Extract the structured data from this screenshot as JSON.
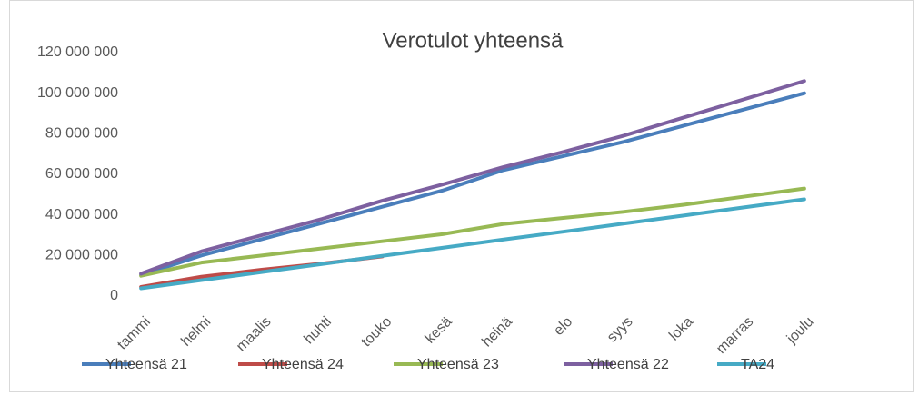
{
  "chart_data": {
    "type": "line",
    "title": "Verotulot yhteensä",
    "categories": [
      "tammi",
      "helmi",
      "maalis",
      "huhti",
      "touko",
      "kesä",
      "heinä",
      "elo",
      "syys",
      "loka",
      "marras",
      "joulu"
    ],
    "series": [
      {
        "name": "Yhteensä 21",
        "color": "#4a7ebb",
        "values": [
          10300000,
          20000000,
          28000000,
          36000000,
          44000000,
          52000000,
          62000000,
          69000000,
          76000000,
          84000000,
          92000000,
          100000000
        ]
      },
      {
        "name": "Yhteensä 24",
        "color": "#be4b48",
        "values": [
          4500000,
          9500000,
          13000000,
          16000000,
          19500000,
          null,
          null,
          null,
          null,
          null,
          null,
          null
        ]
      },
      {
        "name": "Yhteensä 23",
        "color": "#98b954",
        "values": [
          10000000,
          16500000,
          20000000,
          23500000,
          27000000,
          30500000,
          35500000,
          38500000,
          41500000,
          45000000,
          49000000,
          53000000
        ]
      },
      {
        "name": "Yhteensä 22",
        "color": "#7d60a0",
        "values": [
          11000000,
          22000000,
          30000000,
          38000000,
          47000000,
          55000000,
          63500000,
          71000000,
          79000000,
          88000000,
          97000000,
          106000000
        ]
      },
      {
        "name": "TA24",
        "color": "#46aac5",
        "values": [
          3800000,
          7800000,
          11800000,
          15800000,
          19800000,
          23800000,
          27800000,
          31700000,
          35700000,
          39700000,
          43700000,
          47700000
        ]
      }
    ],
    "ylim": [
      0,
      120000000
    ],
    "yticks": [
      0,
      {
        "value": 20000000,
        "label": "20 000 000"
      },
      {
        "value": 40000000,
        "label": "40 000 000"
      },
      {
        "value": 60000000,
        "label": "60 000 000"
      },
      {
        "value": 80000000,
        "label": "80 000 000"
      },
      {
        "value": 100000000,
        "label": "100 000 000"
      },
      {
        "value": 120000000,
        "label": "120 000 000"
      }
    ],
    "legend": "bottom"
  }
}
